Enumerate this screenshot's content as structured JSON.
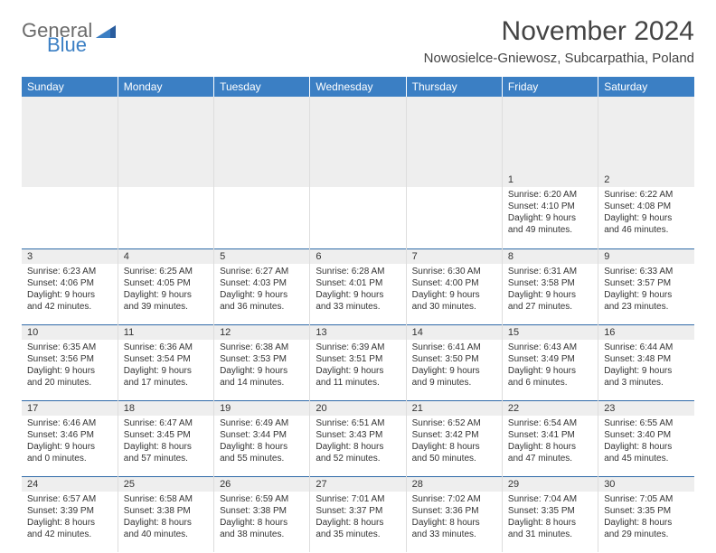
{
  "logo": {
    "part1": "General",
    "part2": "Blue"
  },
  "title": "November 2024",
  "location": "Nowosielce-Gniewosz, Subcarpathia, Poland",
  "colors": {
    "header_bg": "#3b7fc4",
    "header_text": "#ffffff",
    "daynum_bg": "#eeeeee",
    "border": "#dddddd",
    "accent_border": "#2f6aa8",
    "body_bg": "#ffffff",
    "text": "#333333",
    "logo_gray": "#6b6b6b",
    "logo_blue": "#3b7fc4"
  },
  "day_headers": [
    "Sunday",
    "Monday",
    "Tuesday",
    "Wednesday",
    "Thursday",
    "Friday",
    "Saturday"
  ],
  "weeks": [
    [
      null,
      null,
      null,
      null,
      null,
      {
        "n": "1",
        "sr": "Sunrise: 6:20 AM",
        "ss": "Sunset: 4:10 PM",
        "d1": "Daylight: 9 hours",
        "d2": "and 49 minutes."
      },
      {
        "n": "2",
        "sr": "Sunrise: 6:22 AM",
        "ss": "Sunset: 4:08 PM",
        "d1": "Daylight: 9 hours",
        "d2": "and 46 minutes."
      }
    ],
    [
      {
        "n": "3",
        "sr": "Sunrise: 6:23 AM",
        "ss": "Sunset: 4:06 PM",
        "d1": "Daylight: 9 hours",
        "d2": "and 42 minutes."
      },
      {
        "n": "4",
        "sr": "Sunrise: 6:25 AM",
        "ss": "Sunset: 4:05 PM",
        "d1": "Daylight: 9 hours",
        "d2": "and 39 minutes."
      },
      {
        "n": "5",
        "sr": "Sunrise: 6:27 AM",
        "ss": "Sunset: 4:03 PM",
        "d1": "Daylight: 9 hours",
        "d2": "and 36 minutes."
      },
      {
        "n": "6",
        "sr": "Sunrise: 6:28 AM",
        "ss": "Sunset: 4:01 PM",
        "d1": "Daylight: 9 hours",
        "d2": "and 33 minutes."
      },
      {
        "n": "7",
        "sr": "Sunrise: 6:30 AM",
        "ss": "Sunset: 4:00 PM",
        "d1": "Daylight: 9 hours",
        "d2": "and 30 minutes."
      },
      {
        "n": "8",
        "sr": "Sunrise: 6:31 AM",
        "ss": "Sunset: 3:58 PM",
        "d1": "Daylight: 9 hours",
        "d2": "and 27 minutes."
      },
      {
        "n": "9",
        "sr": "Sunrise: 6:33 AM",
        "ss": "Sunset: 3:57 PM",
        "d1": "Daylight: 9 hours",
        "d2": "and 23 minutes."
      }
    ],
    [
      {
        "n": "10",
        "sr": "Sunrise: 6:35 AM",
        "ss": "Sunset: 3:56 PM",
        "d1": "Daylight: 9 hours",
        "d2": "and 20 minutes."
      },
      {
        "n": "11",
        "sr": "Sunrise: 6:36 AM",
        "ss": "Sunset: 3:54 PM",
        "d1": "Daylight: 9 hours",
        "d2": "and 17 minutes."
      },
      {
        "n": "12",
        "sr": "Sunrise: 6:38 AM",
        "ss": "Sunset: 3:53 PM",
        "d1": "Daylight: 9 hours",
        "d2": "and 14 minutes."
      },
      {
        "n": "13",
        "sr": "Sunrise: 6:39 AM",
        "ss": "Sunset: 3:51 PM",
        "d1": "Daylight: 9 hours",
        "d2": "and 11 minutes."
      },
      {
        "n": "14",
        "sr": "Sunrise: 6:41 AM",
        "ss": "Sunset: 3:50 PM",
        "d1": "Daylight: 9 hours",
        "d2": "and 9 minutes."
      },
      {
        "n": "15",
        "sr": "Sunrise: 6:43 AM",
        "ss": "Sunset: 3:49 PM",
        "d1": "Daylight: 9 hours",
        "d2": "and 6 minutes."
      },
      {
        "n": "16",
        "sr": "Sunrise: 6:44 AM",
        "ss": "Sunset: 3:48 PM",
        "d1": "Daylight: 9 hours",
        "d2": "and 3 minutes."
      }
    ],
    [
      {
        "n": "17",
        "sr": "Sunrise: 6:46 AM",
        "ss": "Sunset: 3:46 PM",
        "d1": "Daylight: 9 hours",
        "d2": "and 0 minutes."
      },
      {
        "n": "18",
        "sr": "Sunrise: 6:47 AM",
        "ss": "Sunset: 3:45 PM",
        "d1": "Daylight: 8 hours",
        "d2": "and 57 minutes."
      },
      {
        "n": "19",
        "sr": "Sunrise: 6:49 AM",
        "ss": "Sunset: 3:44 PM",
        "d1": "Daylight: 8 hours",
        "d2": "and 55 minutes."
      },
      {
        "n": "20",
        "sr": "Sunrise: 6:51 AM",
        "ss": "Sunset: 3:43 PM",
        "d1": "Daylight: 8 hours",
        "d2": "and 52 minutes."
      },
      {
        "n": "21",
        "sr": "Sunrise: 6:52 AM",
        "ss": "Sunset: 3:42 PM",
        "d1": "Daylight: 8 hours",
        "d2": "and 50 minutes."
      },
      {
        "n": "22",
        "sr": "Sunrise: 6:54 AM",
        "ss": "Sunset: 3:41 PM",
        "d1": "Daylight: 8 hours",
        "d2": "and 47 minutes."
      },
      {
        "n": "23",
        "sr": "Sunrise: 6:55 AM",
        "ss": "Sunset: 3:40 PM",
        "d1": "Daylight: 8 hours",
        "d2": "and 45 minutes."
      }
    ],
    [
      {
        "n": "24",
        "sr": "Sunrise: 6:57 AM",
        "ss": "Sunset: 3:39 PM",
        "d1": "Daylight: 8 hours",
        "d2": "and 42 minutes."
      },
      {
        "n": "25",
        "sr": "Sunrise: 6:58 AM",
        "ss": "Sunset: 3:38 PM",
        "d1": "Daylight: 8 hours",
        "d2": "and 40 minutes."
      },
      {
        "n": "26",
        "sr": "Sunrise: 6:59 AM",
        "ss": "Sunset: 3:38 PM",
        "d1": "Daylight: 8 hours",
        "d2": "and 38 minutes."
      },
      {
        "n": "27",
        "sr": "Sunrise: 7:01 AM",
        "ss": "Sunset: 3:37 PM",
        "d1": "Daylight: 8 hours",
        "d2": "and 35 minutes."
      },
      {
        "n": "28",
        "sr": "Sunrise: 7:02 AM",
        "ss": "Sunset: 3:36 PM",
        "d1": "Daylight: 8 hours",
        "d2": "and 33 minutes."
      },
      {
        "n": "29",
        "sr": "Sunrise: 7:04 AM",
        "ss": "Sunset: 3:35 PM",
        "d1": "Daylight: 8 hours",
        "d2": "and 31 minutes."
      },
      {
        "n": "30",
        "sr": "Sunrise: 7:05 AM",
        "ss": "Sunset: 3:35 PM",
        "d1": "Daylight: 8 hours",
        "d2": "and 29 minutes."
      }
    ]
  ]
}
